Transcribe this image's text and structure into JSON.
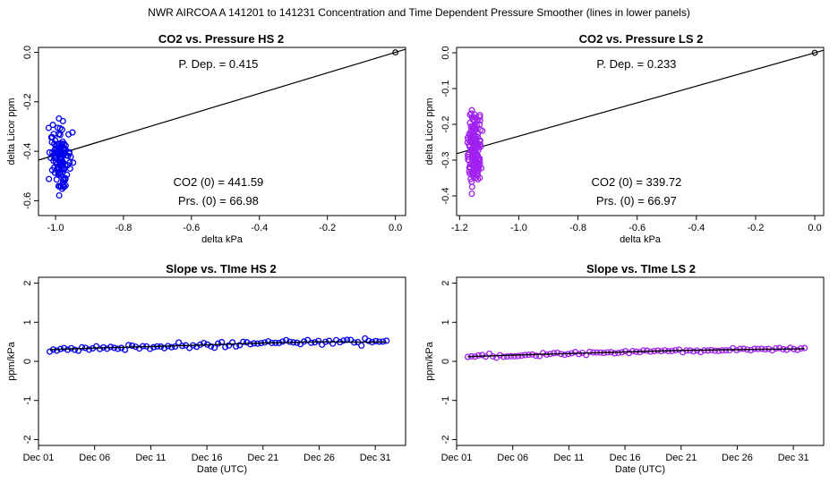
{
  "title": "NWR   AIRCOA A   141201 to 141231   Concentration and Time Dependent Pressure Smoother (lines in lower panels)",
  "colors": {
    "hs": "#0000ee",
    "ls": "#a020f0",
    "line": "#000000"
  },
  "chart_data": [
    {
      "type": "scatter",
      "title": "CO2 vs. Pressure HS 2",
      "xlabel": "delta kPa",
      "ylabel": "delta Licor ppm",
      "xlim": [
        -1.05,
        0.03
      ],
      "ylim": [
        -0.66,
        0.02
      ],
      "xticks": [
        -1.0,
        -0.8,
        -0.6,
        -0.4,
        -0.2,
        0.0
      ],
      "xtick_labels": [
        "-1.0",
        "-0.8",
        "-0.6",
        "-0.4",
        "-0.2",
        "0.0"
      ],
      "yticks": [
        0.0,
        -0.2,
        -0.4,
        -0.6
      ],
      "ytick_labels": [
        "0.0",
        "-0.2",
        "-0.4",
        "-0.6"
      ],
      "color_key": "hs",
      "fit_line": {
        "slope": 0.415,
        "intercept": 0.0
      },
      "origin_point": [
        0.0,
        0.0
      ],
      "annotations": {
        "dep": "P. Dep. =  0.415",
        "co2": "CO2 (0) =  441.59",
        "prs": "Prs. (0) =  66.98"
      },
      "cluster": {
        "x_center": -0.985,
        "x_spread": 0.03,
        "y_center": -0.42,
        "y_spread": 0.1,
        "y_min": -0.64,
        "y_max": -0.17,
        "n": 120,
        "seed": 7
      }
    },
    {
      "type": "scatter",
      "title": "CO2 vs. Pressure LS 2",
      "xlabel": "delta kPa",
      "ylabel": "delta Licor ppm",
      "xlim": [
        -1.21,
        0.03
      ],
      "ylim": [
        -0.455,
        0.015
      ],
      "xticks": [
        -1.2,
        -1.0,
        -0.8,
        -0.6,
        -0.4,
        -0.2,
        0.0
      ],
      "xtick_labels": [
        "-1.2",
        "-1.0",
        "-0.8",
        "-0.6",
        "-0.4",
        "-0.2",
        "0.0"
      ],
      "yticks": [
        0.0,
        -0.1,
        -0.2,
        -0.3,
        -0.4
      ],
      "ytick_labels": [
        "0.0",
        "-0.1",
        "-0.2",
        "-0.3",
        "-0.4"
      ],
      "color_key": "ls",
      "fit_line": {
        "slope": 0.233,
        "intercept": 0.0
      },
      "origin_point": [
        0.0,
        0.0
      ],
      "annotations": {
        "dep": "P. Dep. =  0.233",
        "co2": "CO2 (0) =  339.72",
        "prs": "Prs. (0) =  66.97"
      },
      "cluster": {
        "x_center": -1.15,
        "x_spread": 0.02,
        "y_center": -0.27,
        "y_spread": 0.08,
        "y_min": -0.44,
        "y_max": -0.04,
        "n": 150,
        "seed": 13
      }
    },
    {
      "type": "line",
      "title": "Slope vs. TIme HS 2",
      "xlabel": "Date (UTC)",
      "ylabel": "ppm/kPa",
      "xlim": [
        0,
        32.7
      ],
      "ylim": [
        -2.15,
        2.15
      ],
      "xticks": [
        0,
        5,
        10,
        15,
        20,
        25,
        30
      ],
      "xtick_labels": [
        "Dec 01",
        "Dec 06",
        "Dec 11",
        "Dec 16",
        "Dec 21",
        "Dec 26",
        "Dec 31"
      ],
      "yticks": [
        -2,
        -1,
        0,
        1,
        2
      ],
      "ytick_labels": [
        "-2",
        "-1",
        "0",
        "1",
        "2"
      ],
      "color_key": "hs",
      "smooth": {
        "x": [
          1,
          5,
          10,
          15,
          20,
          25,
          31
        ],
        "y": [
          0.3,
          0.34,
          0.38,
          0.42,
          0.47,
          0.5,
          0.49
        ]
      },
      "points": {
        "x_start": 1.0,
        "x_end": 31.0,
        "n": 95,
        "noise": 0.07,
        "seed": 21
      }
    },
    {
      "type": "line",
      "title": "Slope vs. TIme LS 2",
      "xlabel": "Date (UTC)",
      "ylabel": "ppm/kPa",
      "xlim": [
        0,
        32.7
      ],
      "ylim": [
        -2.15,
        2.15
      ],
      "xticks": [
        0,
        5,
        10,
        15,
        20,
        25,
        30
      ],
      "xtick_labels": [
        "Dec 01",
        "Dec 06",
        "Dec 11",
        "Dec 16",
        "Dec 21",
        "Dec 26",
        "Dec 31"
      ],
      "yticks": [
        -2,
        -1,
        0,
        1,
        2
      ],
      "ytick_labels": [
        "-2",
        "-1",
        "0",
        "1",
        "2"
      ],
      "color_key": "ls",
      "smooth": {
        "x": [
          1,
          5,
          10,
          15,
          20,
          25,
          31
        ],
        "y": [
          0.12,
          0.16,
          0.2,
          0.24,
          0.28,
          0.3,
          0.32
        ]
      },
      "points": {
        "x_start": 1.0,
        "x_end": 31.0,
        "n": 95,
        "noise": 0.05,
        "seed": 33
      }
    }
  ]
}
